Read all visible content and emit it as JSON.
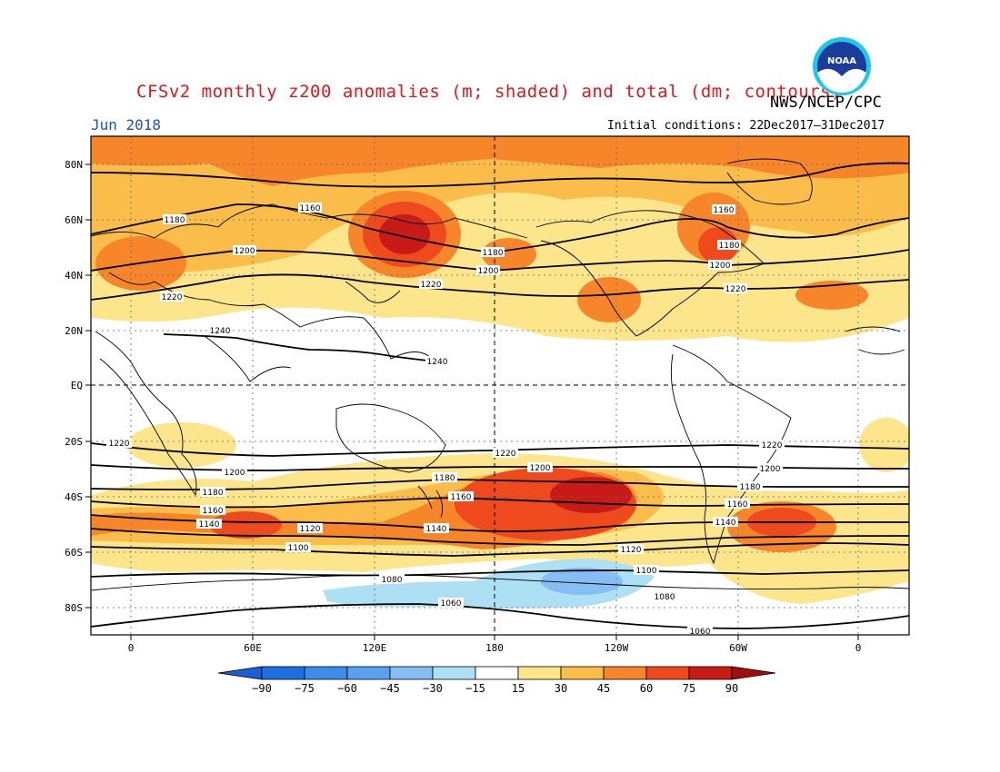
{
  "title": "CFSv2 monthly z200 anomalies (m; shaded) and total (dm; contours)",
  "agency": "NWS/NCEP/CPC",
  "month": "Jun 2018",
  "initial_conditions": "Initial conditions: 22Dec2017–31Dec2017",
  "logo_text": "NOAA",
  "map": {
    "lat_labels": [
      "80N",
      "60N",
      "40N",
      "20N",
      "EQ",
      "20S",
      "40S",
      "60S",
      "80S"
    ],
    "lon_labels": [
      "0",
      "60E",
      "120E",
      "180",
      "120W",
      "60W",
      "0"
    ]
  },
  "colorbar": {
    "labels": [
      "−90",
      "−75",
      "−60",
      "−45",
      "−30",
      "−15",
      "15",
      "30",
      "45",
      "60",
      "75",
      "90"
    ],
    "colors": [
      "#1e6fe0",
      "#3d8ce8",
      "#5aa0ee",
      "#86bdf2",
      "#aee0f4",
      "#ffffff",
      "#fce58a",
      "#fbbd4a",
      "#f7862a",
      "#ee4a1e",
      "#c81a16"
    ],
    "low_arrow": "#1a5fd8",
    "high_arrow": "#a00e0e"
  },
  "contours": {
    "nh": [
      {
        "value": "1160",
        "label": "1160"
      },
      {
        "value": "1180",
        "label": "1180"
      },
      {
        "value": "1200",
        "label": "1200"
      },
      {
        "value": "1220",
        "label": "1220"
      },
      {
        "value": "1240",
        "label": "1240"
      }
    ],
    "sh": [
      {
        "value": "1220",
        "label": "1220"
      },
      {
        "value": "1200",
        "label": "1200"
      },
      {
        "value": "1180",
        "label": "1180"
      },
      {
        "value": "1160",
        "label": "1160"
      },
      {
        "value": "1140",
        "label": "1140"
      },
      {
        "value": "1120",
        "label": "1120"
      },
      {
        "value": "1100",
        "label": "1100"
      },
      {
        "value": "1080",
        "label": "1080"
      },
      {
        "value": "1060",
        "label": "1060"
      }
    ]
  }
}
